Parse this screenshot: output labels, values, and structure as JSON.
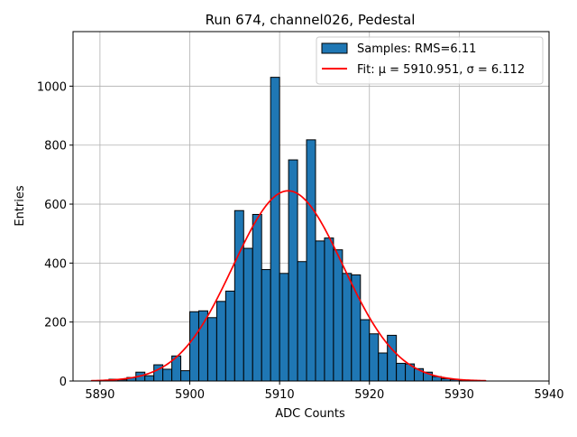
{
  "chart_data": {
    "type": "bar",
    "title": "Run 674, channel026, Pedestal",
    "xlabel": "ADC Counts",
    "ylabel": "Entries",
    "xlim": [
      5887,
      5940
    ],
    "ylim": [
      0,
      1185
    ],
    "xticks": [
      5890,
      5900,
      5910,
      5920,
      5930,
      5940
    ],
    "yticks": [
      0,
      200,
      400,
      600,
      800,
      1000
    ],
    "grid": true,
    "legend_position": "top-right",
    "bin_width": 1,
    "histogram": {
      "name": "Samples: RMS=6.11",
      "color": "#1f77b4",
      "bin_lefts": [
        5891,
        5892,
        5893,
        5894,
        5895,
        5896,
        5897,
        5898,
        5899,
        5900,
        5901,
        5902,
        5903,
        5904,
        5905,
        5906,
        5907,
        5908,
        5909,
        5910,
        5911,
        5912,
        5913,
        5914,
        5915,
        5916,
        5917,
        5918,
        5919,
        5920,
        5921,
        5922,
        5923,
        5924,
        5925,
        5926,
        5927,
        5928,
        5929,
        5930
      ],
      "counts": [
        6,
        4,
        12,
        30,
        18,
        55,
        40,
        85,
        35,
        235,
        238,
        215,
        270,
        305,
        578,
        450,
        565,
        378,
        1030,
        365,
        750,
        405,
        818,
        475,
        485,
        445,
        365,
        360,
        208,
        160,
        95,
        155,
        60,
        58,
        42,
        30,
        15,
        8,
        5,
        2
      ]
    },
    "fit": {
      "name": "Fit: μ = 5910.951, σ = 6.112",
      "color": "#ff0000",
      "mu": 5910.951,
      "sigma": 6.112,
      "amplitude": 645,
      "x_range": [
        5889,
        5933
      ]
    }
  }
}
